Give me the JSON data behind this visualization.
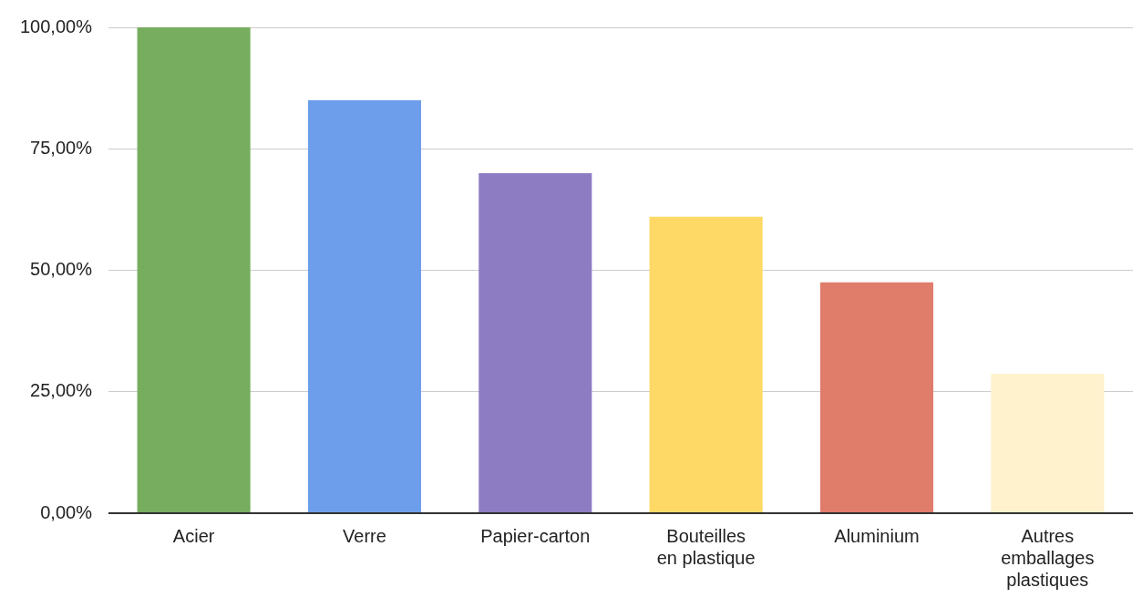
{
  "chart_data": {
    "type": "bar",
    "categories": [
      "Acier",
      "Verre",
      "Papier-carton",
      "Bouteilles en plastique",
      "Aluminium",
      "Autres emballages plastiques"
    ],
    "values": [
      100,
      85,
      70,
      61,
      47.5,
      28.7
    ],
    "colors": [
      "#76ad5e",
      "#6d9eeb",
      "#8e7cc3",
      "#ffd966",
      "#e07c6a",
      "#fff2cc"
    ],
    "ylim": [
      0,
      100
    ],
    "yticks": [
      {
        "value": 0,
        "label": "0,00%"
      },
      {
        "value": 25,
        "label": "25,00%"
      },
      {
        "value": 50,
        "label": "50,00%"
      },
      {
        "value": 75,
        "label": "75,00%"
      },
      {
        "value": 100,
        "label": "100,00%"
      }
    ],
    "grid": "y",
    "legend": false
  }
}
